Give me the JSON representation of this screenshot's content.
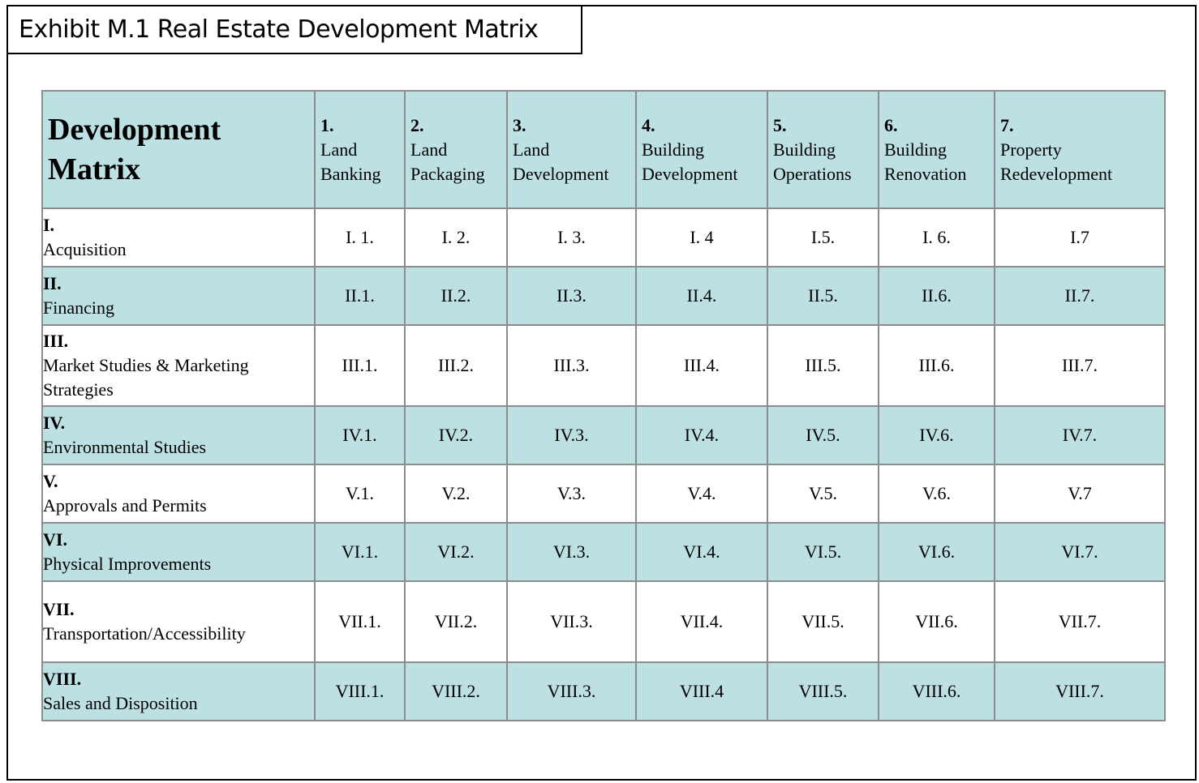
{
  "title": "Exhibit M.1 Real Estate Development Matrix",
  "corner": {
    "line1": "Development",
    "line2": "Matrix"
  },
  "columns": [
    {
      "num": "1.",
      "line1": "Land",
      "line2": "Banking"
    },
    {
      "num": "2.",
      "line1": "Land",
      "line2": "Packaging"
    },
    {
      "num": "3.",
      "line1": "Land",
      "line2": "Development"
    },
    {
      "num": "4.",
      "line1": "Building",
      "line2": "Development"
    },
    {
      "num": "5.",
      "line1": "Building",
      "line2": "Operations"
    },
    {
      "num": "6.",
      "line1": "Building",
      "line2": "Renovation"
    },
    {
      "num": "7.",
      "line1": "Property",
      "line2": "Redevelopment"
    }
  ],
  "rows": [
    {
      "num": "I.",
      "label": "Acquisition",
      "cells": [
        "I. 1.",
        "I. 2.",
        "I. 3.",
        "I. 4",
        "I.5.",
        "I. 6.",
        "I.7"
      ]
    },
    {
      "num": "II.",
      "label": "Financing",
      "cells": [
        "II.1.",
        "II.2.",
        "II.3.",
        "II.4.",
        "II.5.",
        "II.6.",
        "II.7."
      ]
    },
    {
      "num": "III.",
      "label": "Market Studies & Marketing Strategies",
      "cells": [
        "III.1.",
        "III.2.",
        "III.3.",
        "III.4.",
        "III.5.",
        "III.6.",
        "III.7."
      ]
    },
    {
      "num": "IV.",
      "label": "Environmental Studies",
      "cells": [
        "IV.1.",
        "IV.2.",
        "IV.3.",
        "IV.4.",
        "IV.5.",
        "IV.6.",
        "IV.7."
      ]
    },
    {
      "num": "V.",
      "label": "Approvals and Permits",
      "cells": [
        "V.1.",
        "V.2.",
        "V.3.",
        "V.4.",
        "V.5.",
        "V.6.",
        "V.7"
      ]
    },
    {
      "num": "VI.",
      "label": "Physical Improvements",
      "cells": [
        "VI.1.",
        "VI.2.",
        "VI.3.",
        "VI.4.",
        "VI.5.",
        "VI.6.",
        "VI.7."
      ]
    },
    {
      "num": "VII.",
      "label": "Transportation/Accessibility",
      "cells": [
        "VII.1.",
        "VII.2.",
        "VII.3.",
        "VII.4.",
        "VII.5.",
        "VII.6.",
        "VII.7."
      ]
    },
    {
      "num": "VIII.",
      "label": "Sales and Disposition",
      "cells": [
        "VIII.1.",
        "VIII.2.",
        "VIII.3.",
        "VIII.4",
        "VIII.5.",
        "VIII.6.",
        "VIII.7."
      ]
    }
  ],
  "colors": {
    "shade": "#bde0e2",
    "border": "#8c8c8c"
  }
}
